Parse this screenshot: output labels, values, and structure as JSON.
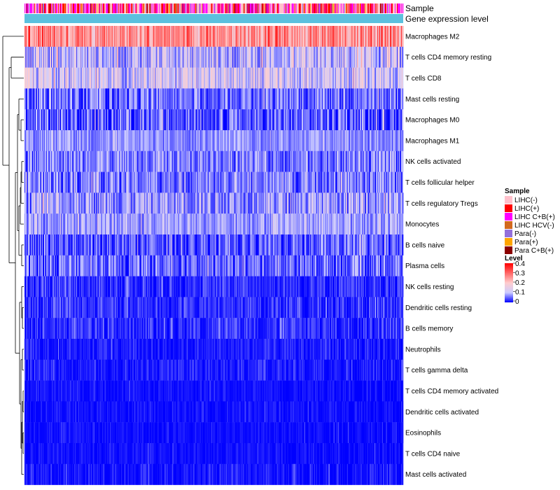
{
  "chart_data": {
    "type": "heatmap",
    "title": "",
    "top_annotations": [
      {
        "label": "Sample"
      },
      {
        "label": "Gene expression level"
      }
    ],
    "rows": [
      {
        "label": "Macrophages M2",
        "mean": 0.26,
        "spread": 0.1
      },
      {
        "label": "T cells CD4 memory resting",
        "mean": 0.1,
        "spread": 0.08
      },
      {
        "label": "T cells CD8",
        "mean": 0.12,
        "spread": 0.08
      },
      {
        "label": "Mast cells resting",
        "mean": 0.05,
        "spread": 0.06
      },
      {
        "label": "Macrophages M0",
        "mean": 0.04,
        "spread": 0.07
      },
      {
        "label": "Macrophages M1",
        "mean": 0.07,
        "spread": 0.04
      },
      {
        "label": "NK cells activated",
        "mean": 0.06,
        "spread": 0.06
      },
      {
        "label": "T cells follicular helper",
        "mean": 0.06,
        "spread": 0.06
      },
      {
        "label": "T cells regulatory  Tregs",
        "mean": 0.08,
        "spread": 0.07
      },
      {
        "label": "Monocytes",
        "mean": 0.08,
        "spread": 0.05
      },
      {
        "label": "B cells naive",
        "mean": 0.04,
        "spread": 0.06
      },
      {
        "label": "Plasma cells",
        "mean": 0.05,
        "spread": 0.06
      },
      {
        "label": "NK cells resting",
        "mean": 0.02,
        "spread": 0.04
      },
      {
        "label": "Dendritic cells resting",
        "mean": 0.02,
        "spread": 0.04
      },
      {
        "label": "B cells memory",
        "mean": 0.02,
        "spread": 0.04
      },
      {
        "label": "Neutrophils",
        "mean": 0.01,
        "spread": 0.03
      },
      {
        "label": "T cells gamma delta",
        "mean": 0.01,
        "spread": 0.03
      },
      {
        "label": "T cells CD4 memory activated",
        "mean": 0.005,
        "spread": 0.02
      },
      {
        "label": "Dendritic cells activated",
        "mean": 0.005,
        "spread": 0.02
      },
      {
        "label": "Eosinophils",
        "mean": 0.003,
        "spread": 0.02
      },
      {
        "label": "T cells CD4 naive",
        "mean": 0.003,
        "spread": 0.02
      },
      {
        "label": "Mast cells activated",
        "mean": 0.005,
        "spread": 0.03
      }
    ],
    "n_samples": 540,
    "color_scale": {
      "min": 0,
      "max": 0.4,
      "stops": [
        {
          "value": 0,
          "color": "#0000ff"
        },
        {
          "value": 0.1,
          "color": "#ccccff"
        },
        {
          "value": 0.2,
          "color": "#ffcccc"
        },
        {
          "value": 0.3,
          "color": "#ff6666"
        },
        {
          "value": 0.4,
          "color": "#ff0000"
        }
      ]
    },
    "sample_legend": {
      "title": "Sample",
      "items": [
        {
          "label": "LIHC(-)",
          "color": "#ffc0cb"
        },
        {
          "label": "LIHC(+)",
          "color": "#ff0000"
        },
        {
          "label": "LIHC C+B(+)",
          "color": "#ff00ff"
        },
        {
          "label": "LIHC HCV(-)",
          "color": "#d2691e"
        },
        {
          "label": "Para(-)",
          "color": "#9370db"
        },
        {
          "label": "Para(+)",
          "color": "#ffa500"
        },
        {
          "label": "Para C+B(+)",
          "color": "#8b0000"
        }
      ]
    },
    "level_legend": {
      "title": "Level",
      "ticks": [
        "0.4",
        "0.3",
        "0.2",
        "0.1",
        "0"
      ]
    },
    "gene_expression_bar_color": "#5bc0de"
  }
}
